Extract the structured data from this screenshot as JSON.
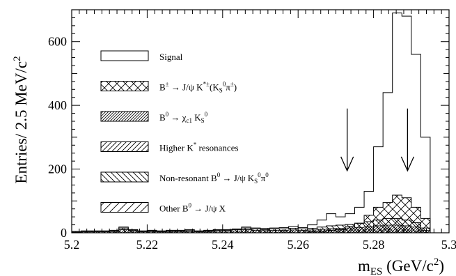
{
  "chart_data": {
    "type": "bar",
    "subtype": "stacked-histogram",
    "xlabel": {
      "main": "m",
      "sub": "ES",
      "tail": " (GeV/c",
      "sup": "2",
      "close": ")"
    },
    "ylabel": {
      "main": "Entries/ 2.5 MeV/c",
      "sup": "2"
    },
    "xlim": [
      5.2,
      5.3
    ],
    "ylim": [
      0,
      700
    ],
    "xticks": [
      "5.2",
      "5.22",
      "5.24",
      "5.26",
      "5.28",
      "5.3"
    ],
    "yticks": [
      "0",
      "200",
      "400",
      "600"
    ],
    "bin_width": 0.0025,
    "x_start": 5.2,
    "bins_total": [
      4,
      6,
      6,
      6,
      8,
      18,
      10,
      6,
      8,
      6,
      8,
      8,
      10,
      6,
      8,
      10,
      10,
      12,
      18,
      15,
      14,
      15,
      16,
      20,
      16,
      25,
      40,
      60,
      50,
      60,
      80,
      130,
      270,
      440,
      690,
      680,
      560,
      300,
      0,
      0
    ],
    "bins_crossed": [
      0,
      0,
      0,
      0,
      0,
      0,
      0,
      0,
      0,
      0,
      0,
      0,
      0,
      0,
      0,
      0,
      0,
      0,
      0,
      0,
      0,
      0,
      0,
      0,
      0,
      3,
      5,
      8,
      10,
      20,
      30,
      55,
      80,
      95,
      118,
      110,
      80,
      45,
      0,
      0
    ],
    "bins_stack_top": [
      4,
      5,
      5,
      5,
      6,
      15,
      8,
      5,
      6,
      5,
      6,
      6,
      7,
      5,
      6,
      8,
      8,
      10,
      15,
      12,
      10,
      12,
      12,
      14,
      12,
      14,
      18,
      22,
      24,
      26,
      30,
      35,
      40,
      45,
      45,
      40,
      32,
      15,
      0,
      0
    ],
    "bins_chi": [
      2,
      3,
      3,
      3,
      3,
      10,
      5,
      3,
      4,
      3,
      4,
      4,
      4,
      3,
      4,
      5,
      5,
      6,
      10,
      8,
      7,
      8,
      8,
      9,
      8,
      9,
      11,
      13,
      14,
      15,
      17,
      19,
      22,
      24,
      24,
      22,
      18,
      8,
      0,
      0
    ],
    "bins_higher": [
      1,
      2,
      2,
      2,
      2,
      6,
      3,
      2,
      2,
      2,
      2,
      2,
      2,
      2,
      2,
      3,
      3,
      4,
      6,
      5,
      4,
      5,
      5,
      6,
      5,
      6,
      7,
      8,
      9,
      10,
      11,
      12,
      13,
      14,
      14,
      13,
      11,
      5,
      0,
      0
    ],
    "arrows": [
      {
        "x": 5.273,
        "y_top": 390,
        "y_tip": 195
      },
      {
        "x": 5.289,
        "y_top": 390,
        "y_tip": 195
      }
    ],
    "legend_position": "middle-left",
    "legend": [
      {
        "key": "signal",
        "pattern": "open",
        "label_html": "Signal"
      },
      {
        "key": "crossed",
        "pattern": "crosshatch",
        "label_html": "B<tspan dy=\"-6\" font-size=\"9\">±</tspan><tspan dy=\"6\"> → J/ψ K</tspan><tspan dy=\"-6\" font-size=\"9\">*±</tspan><tspan dy=\"6\">(K</tspan><tspan dy=\"3\" font-size=\"9\">S</tspan><tspan dy=\"-9\" font-size=\"9\">0</tspan><tspan dy=\"6\">π</tspan><tspan dy=\"-6\" font-size=\"9\">±</tspan><tspan dy=\"6\">)</tspan>"
      },
      {
        "key": "chi",
        "pattern": "dense-diagonal",
        "label_html": "B<tspan dy=\"-6\" font-size=\"9\">0</tspan><tspan dy=\"6\"> → χ</tspan><tspan dy=\"3\" font-size=\"9\">c1</tspan><tspan dy=\"-3\"> K</tspan><tspan dy=\"3\" font-size=\"9\">S</tspan><tspan dy=\"-9\" font-size=\"9\">0</tspan>"
      },
      {
        "key": "higher",
        "pattern": "diagonal",
        "label_html": "Higher K<tspan dy=\"-6\" font-size=\"9\">*</tspan><tspan dy=\"6\"> resonances</tspan>"
      },
      {
        "key": "nonres",
        "pattern": "back-diagonal",
        "label_html": "Non-resonant  B<tspan dy=\"-6\" font-size=\"9\">0</tspan><tspan dy=\"6\"> → J/ψ K</tspan><tspan dy=\"3\" font-size=\"9\">S</tspan><tspan dy=\"-9\" font-size=\"9\">0</tspan><tspan dy=\"6\">π</tspan><tspan dy=\"-6\" font-size=\"9\">0</tspan>"
      },
      {
        "key": "other",
        "pattern": "sparse-diagonal",
        "label_html": "Other B<tspan dy=\"-6\" font-size=\"9\">0</tspan><tspan dy=\"6\"> → J/ψ X</tspan>"
      }
    ]
  }
}
